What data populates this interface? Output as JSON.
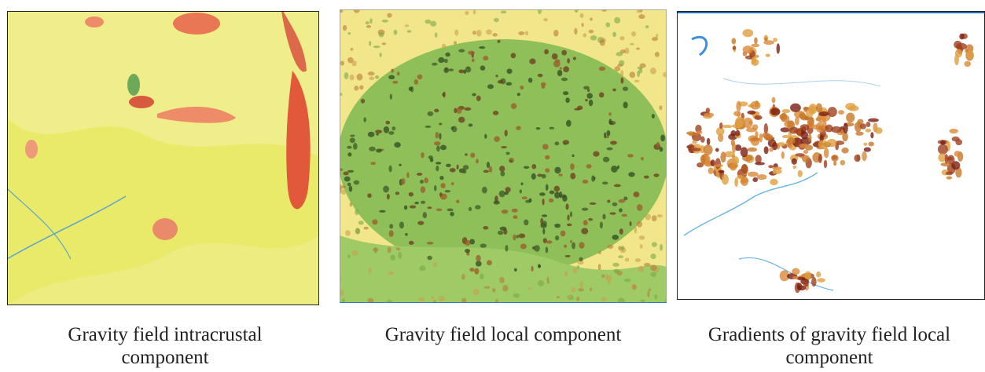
{
  "panels": [
    {
      "caption": "Gravity field intracrustal component"
    },
    {
      "caption": "Gravity field local component"
    },
    {
      "caption": "Gradients of gravity field local component"
    }
  ]
}
